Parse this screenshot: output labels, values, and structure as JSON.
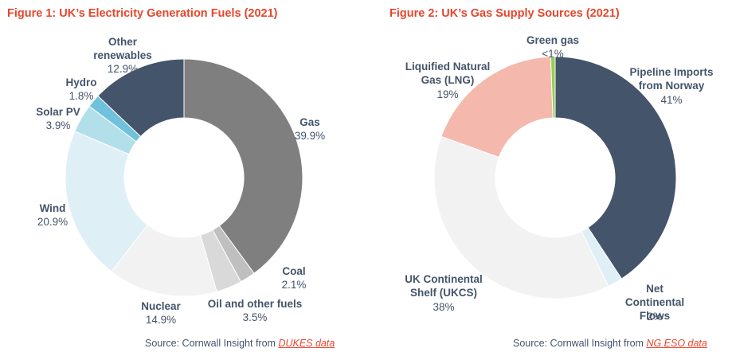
{
  "chart_data": [
    {
      "type": "pie",
      "title": "Figure 1: UK’s Electricity Generation Fuels (2021)",
      "slices": [
        {
          "label": "Gas",
          "value": 39.9,
          "display": "39.9%",
          "color": "#7f7f7f"
        },
        {
          "label": "Coal",
          "value": 2.1,
          "display": "2.1%",
          "color": "#bfbfbf"
        },
        {
          "label": "Oil and other fuels",
          "value": 3.5,
          "display": "3.5%",
          "color": "#d9d9d9"
        },
        {
          "label": "Nuclear",
          "value": 14.9,
          "display": "14.9%",
          "color": "#f2f2f2"
        },
        {
          "label": "Wind",
          "value": 20.9,
          "display": "20.9%",
          "color": "#deeff6"
        },
        {
          "label": "Solar PV",
          "value": 3.9,
          "display": "3.9%",
          "color": "#b3dfeb"
        },
        {
          "label": "Hydro",
          "value": 1.8,
          "display": "1.8%",
          "color": "#6fc1dc"
        },
        {
          "label": "Other renewables",
          "value": 12.9,
          "display": "12.9%",
          "color": "#44546a"
        }
      ],
      "source_prefix": "Source: Cornwall Insight from ",
      "source_link": "DUKES data"
    },
    {
      "type": "pie",
      "title": "Figure 2: UK’s Gas Supply Sources (2021)",
      "slices": [
        {
          "label": "Pipeline Imports from Norway",
          "value": 41,
          "display": "41%",
          "color": "#44546a"
        },
        {
          "label": "Net Continental Flows",
          "value": 2,
          "display": "2%",
          "color": "#deeff6"
        },
        {
          "label": "UK Continental Shelf (UKCS)",
          "value": 38,
          "display": "38%",
          "color": "#f2f2f2"
        },
        {
          "label": "Liquified Natural Gas (LNG)",
          "value": 19,
          "display": "19%",
          "color": "#f4b8ad"
        },
        {
          "label": "Green gas",
          "value": 0.6,
          "display": "<1%",
          "color": "#92d050"
        }
      ],
      "source_prefix": "Source: Cornwall Insight from ",
      "source_link": "NG ESO data"
    }
  ]
}
